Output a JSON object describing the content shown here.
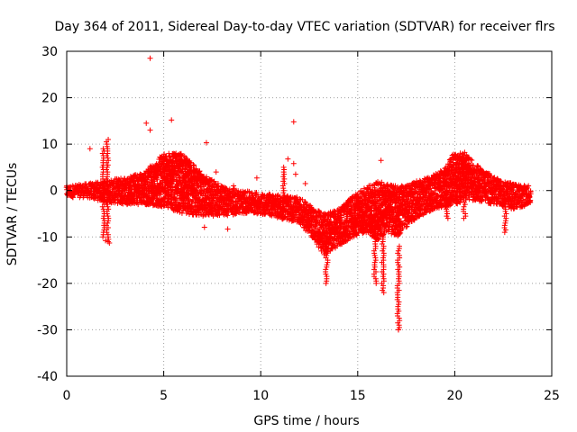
{
  "chart_data": {
    "type": "scatter",
    "title": "Day 364 of 2011, Sidereal Day-to-day VTEC variation (SDTVAR) for receiver flrs",
    "xlabel": "GPS time / hours",
    "ylabel": "SDTVAR / TECUs",
    "xlim": [
      0,
      25
    ],
    "ylim": [
      -40,
      30
    ],
    "xticks": [
      0,
      5,
      10,
      15,
      20,
      25
    ],
    "yticks": [
      -40,
      -30,
      -20,
      -10,
      0,
      10,
      20,
      30
    ],
    "grid": true,
    "marker": "+",
    "color": "#ff0000",
    "band": {
      "description": "dense cloud of points; per-hour lower and upper envelope",
      "x": [
        0.0,
        1.0,
        2.0,
        3.0,
        4.0,
        5.0,
        6.0,
        7.0,
        8.0,
        9.0,
        10.0,
        11.0,
        12.0,
        12.8,
        13.3,
        14.0,
        14.8,
        15.5,
        16.0,
        16.5,
        17.0,
        17.5,
        18.0,
        19.0,
        19.5,
        20.0,
        20.5,
        21.0,
        22.0,
        23.0,
        23.9
      ],
      "lower": [
        -1.5,
        -1.5,
        -2.5,
        -3.0,
        -3.0,
        -3.5,
        -5.0,
        -5.5,
        -5.5,
        -5.0,
        -5.0,
        -6.0,
        -7.0,
        -11.0,
        -14.0,
        -12.0,
        -10.0,
        -9.0,
        -11.0,
        -9.0,
        -10.0,
        -8.0,
        -6.0,
        -4.0,
        -3.5,
        -3.0,
        -2.5,
        -2.0,
        -3.0,
        -4.0,
        -3.0
      ],
      "upper": [
        1.0,
        1.5,
        2.0,
        3.0,
        4.0,
        8.0,
        8.0,
        3.5,
        1.0,
        0.0,
        -0.5,
        -1.0,
        -1.5,
        -4.0,
        -5.0,
        -4.0,
        -1.0,
        1.0,
        2.0,
        1.5,
        1.0,
        1.0,
        2.0,
        3.5,
        5.0,
        8.5,
        8.5,
        6.0,
        3.0,
        1.5,
        1.0
      ]
    },
    "spikes": [
      {
        "x": 1.9,
        "from": -10.0,
        "to": 9.0
      },
      {
        "x": 2.1,
        "from": -11.0,
        "to": 11.0
      },
      {
        "x": 11.2,
        "from": -3.0,
        "to": 5.0
      },
      {
        "x": 13.4,
        "from": -20.0,
        "to": -10.0
      },
      {
        "x": 15.9,
        "from": -20.0,
        "to": -8.0
      },
      {
        "x": 16.3,
        "from": -22.0,
        "to": -10.0
      },
      {
        "x": 17.1,
        "from": -30.0,
        "to": -12.0
      },
      {
        "x": 19.6,
        "from": -6.0,
        "to": 2.0
      },
      {
        "x": 20.5,
        "from": -6.0,
        "to": 1.0
      },
      {
        "x": 22.6,
        "from": -9.0,
        "to": -3.0
      }
    ],
    "outliers": [
      {
        "x": 1.2,
        "y": 9.0
      },
      {
        "x": 2.0,
        "y": -10.8
      },
      {
        "x": 2.2,
        "y": -11.3
      },
      {
        "x": 4.1,
        "y": 14.5
      },
      {
        "x": 4.3,
        "y": 28.5
      },
      {
        "x": 4.3,
        "y": 13.0
      },
      {
        "x": 5.4,
        "y": 15.2
      },
      {
        "x": 7.2,
        "y": 10.3
      },
      {
        "x": 7.7,
        "y": 4.0
      },
      {
        "x": 7.1,
        "y": -7.9
      },
      {
        "x": 8.3,
        "y": -8.3
      },
      {
        "x": 8.6,
        "y": 1.0
      },
      {
        "x": 9.8,
        "y": 2.7
      },
      {
        "x": 11.4,
        "y": 6.8
      },
      {
        "x": 11.7,
        "y": 14.8
      },
      {
        "x": 11.7,
        "y": 5.8
      },
      {
        "x": 11.8,
        "y": 3.5
      },
      {
        "x": 12.3,
        "y": 1.5
      },
      {
        "x": 16.2,
        "y": 6.5
      },
      {
        "x": 17.1,
        "y": -30.0
      }
    ]
  }
}
